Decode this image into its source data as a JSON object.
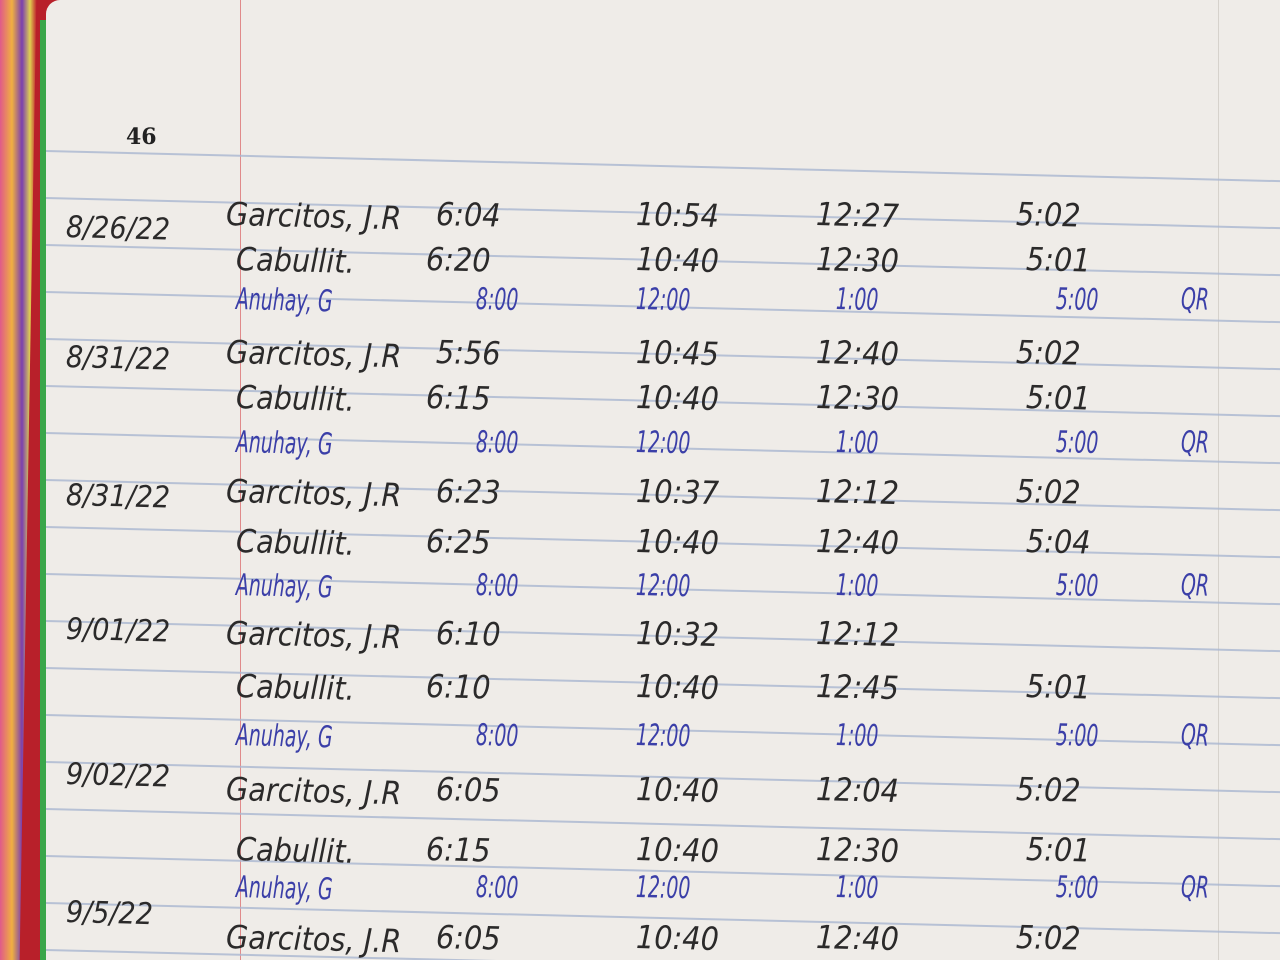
{
  "page_number": "46",
  "entries": [
    {
      "date": "8/26/22",
      "rows": [
        {
          "name": "Garcitos, J.R",
          "times": [
            "6:04",
            "10:54",
            "12:27",
            "5:02"
          ],
          "initials": ""
        },
        {
          "name": "Cabullit.",
          "times": [
            "6:20",
            "10:40",
            "12:30",
            "5:01"
          ],
          "initials": ""
        },
        {
          "name": "Anuhay, G",
          "times": [
            "8:00",
            "12:00",
            "1:00",
            "5:00"
          ],
          "initials": "QR"
        }
      ]
    },
    {
      "date": "8/31/22",
      "rows": [
        {
          "name": "Garcitos, J.R",
          "times": [
            "5:56",
            "10:45",
            "12:40",
            "5:02"
          ],
          "initials": ""
        },
        {
          "name": "Cabullit.",
          "times": [
            "6:15",
            "10:40",
            "12:30",
            "5:01"
          ],
          "initials": ""
        },
        {
          "name": "Anuhay, G",
          "times": [
            "8:00",
            "12:00",
            "1:00",
            "5:00"
          ],
          "initials": "QR"
        }
      ]
    },
    {
      "date": "8/31/22",
      "rows": [
        {
          "name": "Garcitos, J.R",
          "times": [
            "6:23",
            "10:37",
            "12:12",
            "5:02"
          ],
          "initials": ""
        },
        {
          "name": "Cabullit.",
          "times": [
            "6:25",
            "10:40",
            "12:40",
            "5:04"
          ],
          "initials": ""
        },
        {
          "name": "Anuhay, G",
          "times": [
            "8:00",
            "12:00",
            "1:00",
            "5:00"
          ],
          "initials": "QR"
        }
      ]
    },
    {
      "date": "9/01/22",
      "rows": [
        {
          "name": "Garcitos, J.R",
          "times": [
            "6:10",
            "10:32",
            "12:12",
            ""
          ],
          "initials": ""
        },
        {
          "name": "Cabullit.",
          "times": [
            "6:10",
            "10:40",
            "12:45",
            "5:01"
          ],
          "initials": ""
        },
        {
          "name": "Anuhay, G",
          "times": [
            "8:00",
            "12:00",
            "1:00",
            "5:00"
          ],
          "initials": "QR"
        }
      ]
    },
    {
      "date": "9/02/22",
      "rows": [
        {
          "name": "Garcitos, J.R",
          "times": [
            "6:05",
            "10:40",
            "12:04",
            "5:02"
          ],
          "initials": ""
        },
        {
          "name": "Cabullit.",
          "times": [
            "6:15",
            "10:40",
            "12:30",
            "5:01"
          ],
          "initials": ""
        },
        {
          "name": "Anuhay, G",
          "times": [
            "8:00",
            "12:00",
            "1:00",
            "5:00"
          ],
          "initials": "QR"
        }
      ]
    },
    {
      "date": "9/5/22",
      "rows": [
        {
          "name": "Garcitos, J.R",
          "times": [
            "6:05",
            "10:40",
            "12:40",
            "5:02"
          ],
          "initials": ""
        }
      ]
    }
  ]
}
